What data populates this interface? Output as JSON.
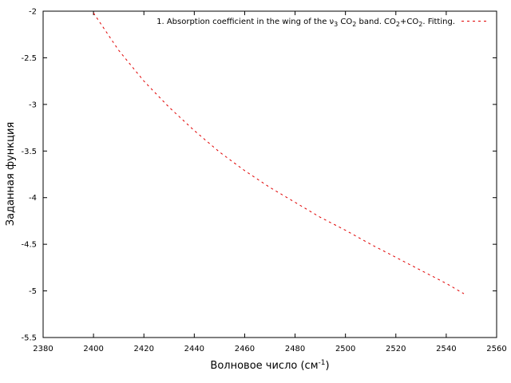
{
  "chart_data": {
    "type": "line",
    "title": "",
    "xlabel": {
      "base": "Волновое число (см",
      "sup": "-1",
      "close": ")"
    },
    "ylabel": "Заданная функция",
    "xlim": [
      2380,
      2560
    ],
    "ylim": [
      -5.5,
      -2
    ],
    "x_ticks": [
      2380,
      2400,
      2420,
      2440,
      2460,
      2480,
      2500,
      2520,
      2540,
      2560
    ],
    "x_tick_labels": [
      "2380",
      "2400",
      "2420",
      "2440",
      "2460",
      "2480",
      "2500",
      "2520",
      "2540",
      "2560"
    ],
    "y_ticks": [
      -5.5,
      -5,
      -4.5,
      -4,
      -3.5,
      -3,
      -2.5,
      -2
    ],
    "y_tick_labels": [
      "-5.5",
      "-5",
      "-4.5",
      "-4",
      "-3.5",
      "-3",
      "-2.5",
      "-2"
    ],
    "grid": false,
    "legend_position": "top-right",
    "legend": {
      "parts": [
        {
          "text": "1. Absorption coefficient in the wing of the ν",
          "sub": "3"
        },
        {
          "text": " CO",
          "sub": "2"
        },
        {
          "text": " band. CO",
          "sub": "2"
        },
        {
          "text": "+CO",
          "sub": "2"
        },
        {
          "text": ". Fitting.",
          "sub": ""
        }
      ]
    },
    "series": [
      {
        "color": "#e00000",
        "style": "dashed",
        "x": [
          2400,
          2410,
          2420,
          2430,
          2440,
          2450,
          2460,
          2470,
          2480,
          2490,
          2500,
          2510,
          2520,
          2530,
          2540,
          2547
        ],
        "y": [
          -2.02,
          -2.42,
          -2.75,
          -3.03,
          -3.28,
          -3.51,
          -3.71,
          -3.89,
          -4.05,
          -4.21,
          -4.35,
          -4.5,
          -4.64,
          -4.78,
          -4.92,
          -5.03
        ]
      }
    ]
  }
}
